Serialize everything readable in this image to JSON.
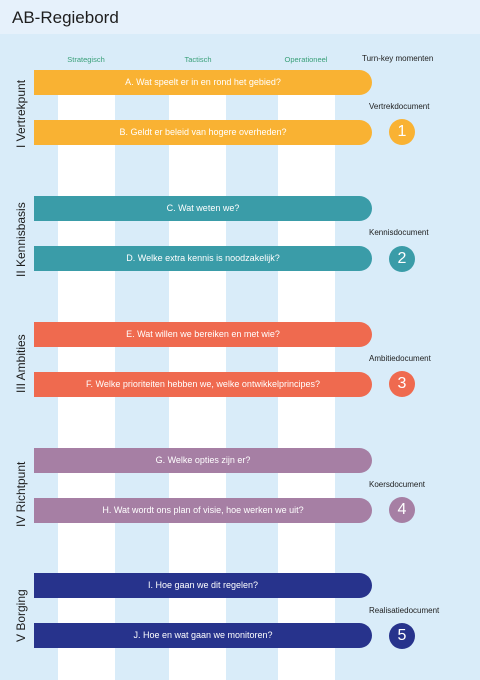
{
  "title": "AB-Regiebord",
  "columns": [
    "Strategisch",
    "Tactisch",
    "Operationeel"
  ],
  "turnkey_heading": "Turn-key momenten",
  "phases": [
    {
      "label": "I Vertrekpunt",
      "color": "#f9b233",
      "questions": [
        "A. Wat speelt er in en rond het gebied?",
        "B. Geldt er beleid van hogere overheden?"
      ],
      "document": "Vertrekdocument",
      "number": "1"
    },
    {
      "label": "II Kennisbasis",
      "color": "#3a9ca8",
      "questions": [
        "C. Wat weten we?",
        "D. Welke extra kennis is noodzakelijk?"
      ],
      "document": "Kennisdocument",
      "number": "2"
    },
    {
      "label": "III Ambities",
      "color": "#ef6a4f",
      "questions": [
        "E. Wat willen we bereiken en met wie?",
        "F. Welke prioriteiten hebben we, welke ontwikkelprincipes?"
      ],
      "document": "Ambitiedocument",
      "number": "3"
    },
    {
      "label": "IV Richtpunt",
      "color": "#a67fa4",
      "questions": [
        "G. Welke opties zijn er?",
        "H. Wat wordt ons plan of visie, hoe werken we uit?"
      ],
      "document": "Koersdocument",
      "number": "4"
    },
    {
      "label": "V Borging",
      "color": "#27338c",
      "questions": [
        "I. Hoe gaan we dit regelen?",
        "J. Hoe en wat  gaan we monitoren?"
      ],
      "document": "Realisatiedocument",
      "number": "5"
    }
  ]
}
